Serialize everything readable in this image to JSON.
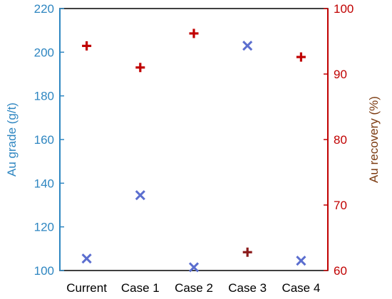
{
  "chart_data": {
    "type": "scatter",
    "categories": [
      "Current",
      "Case 1",
      "Case 2",
      "Case 3",
      "Case 4"
    ],
    "ylabel_left": "Au grade (g/t)",
    "ylabel_right": "Au recovery (%)",
    "ylim_left": [
      100,
      220
    ],
    "ylim_right": [
      60,
      100
    ],
    "yticks_left": [
      100,
      120,
      140,
      160,
      180,
      200,
      220
    ],
    "yticks_right": [
      60,
      70,
      80,
      90,
      100
    ],
    "series": [
      {
        "marker": "x",
        "axis": "left",
        "color": "#5b6ecf",
        "values": [
          105.5,
          134.5,
          101.5,
          203,
          104.5
        ]
      },
      {
        "marker": "+",
        "axis": "right",
        "color": "#c00000",
        "values": [
          94.3,
          91,
          96.2,
          62.8,
          92.6
        ],
        "point_colors": [
          "#c00000",
          "#c00000",
          "#c00000",
          "#8b1a1a",
          "#c00000"
        ]
      }
    ],
    "grid": false,
    "colors": {
      "left_axis": "#2e86c1",
      "right_axis": "#c00000",
      "right_label_dark": "#7b3a10"
    }
  }
}
